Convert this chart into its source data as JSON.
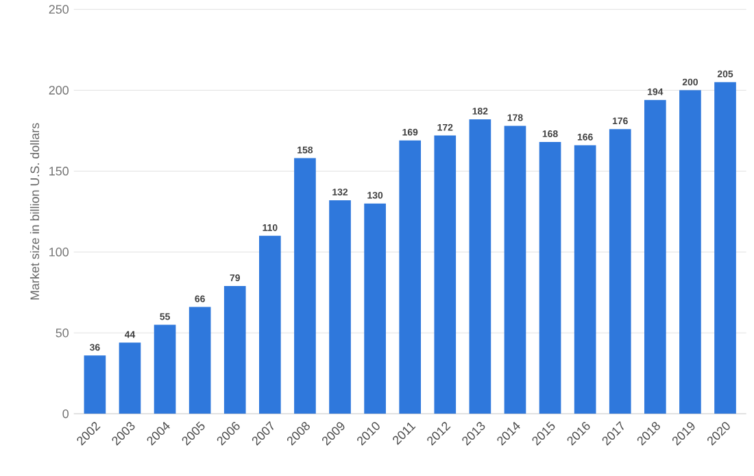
{
  "chart_data": {
    "type": "bar",
    "ylabel": "Market size in billion U.S. dollars",
    "categories": [
      "2002",
      "2003",
      "2004",
      "2005",
      "2006",
      "2007",
      "2008",
      "2009",
      "2010",
      "2011",
      "2012",
      "2013",
      "2014",
      "2015",
      "2016",
      "2017",
      "2018",
      "2019",
      "2020"
    ],
    "values": [
      36,
      44,
      55,
      66,
      79,
      110,
      158,
      132,
      130,
      169,
      172,
      182,
      178,
      168,
      166,
      176,
      194,
      200,
      205
    ],
    "color": "#2f78dc",
    "ylim": [
      0,
      250
    ],
    "yticks": [
      0,
      50,
      100,
      150,
      200,
      250
    ],
    "grid": "y",
    "data_labels": true
  }
}
